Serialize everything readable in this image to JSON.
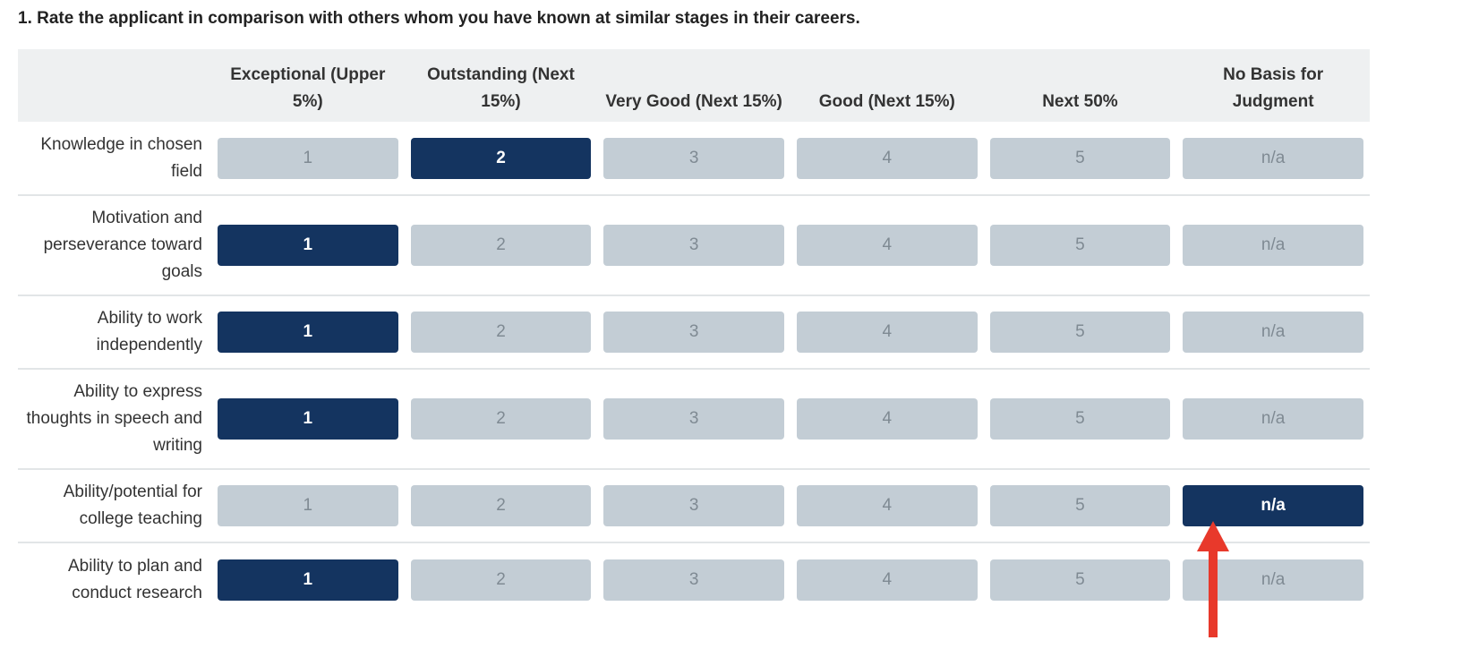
{
  "question": "1. Rate the applicant in comparison with others whom you have known at similar stages in their careers.",
  "columns": [
    "Exceptional (Upper 5%)",
    "Outstanding (Next 15%)",
    "Very Good (Next 15%)",
    "Good (Next 15%)",
    "Next 50%",
    "No Basis for Judgment"
  ],
  "options": [
    "1",
    "2",
    "3",
    "4",
    "5",
    "n/a"
  ],
  "rows": [
    {
      "label": "Knowledge in chosen field",
      "selected": "2"
    },
    {
      "label": "Motivation and perseverance toward goals",
      "selected": "1"
    },
    {
      "label": "Ability to work independently",
      "selected": "1"
    },
    {
      "label": "Ability to express thoughts in speech and writing",
      "selected": "1"
    },
    {
      "label": "Ability/potential for college teaching",
      "selected": "n/a"
    },
    {
      "label": "Ability to plan and conduct research",
      "selected": "1"
    }
  ],
  "colors": {
    "selected": "#143460",
    "unselected": "#c3cdd5",
    "annotation_arrow": "#e8392b"
  }
}
